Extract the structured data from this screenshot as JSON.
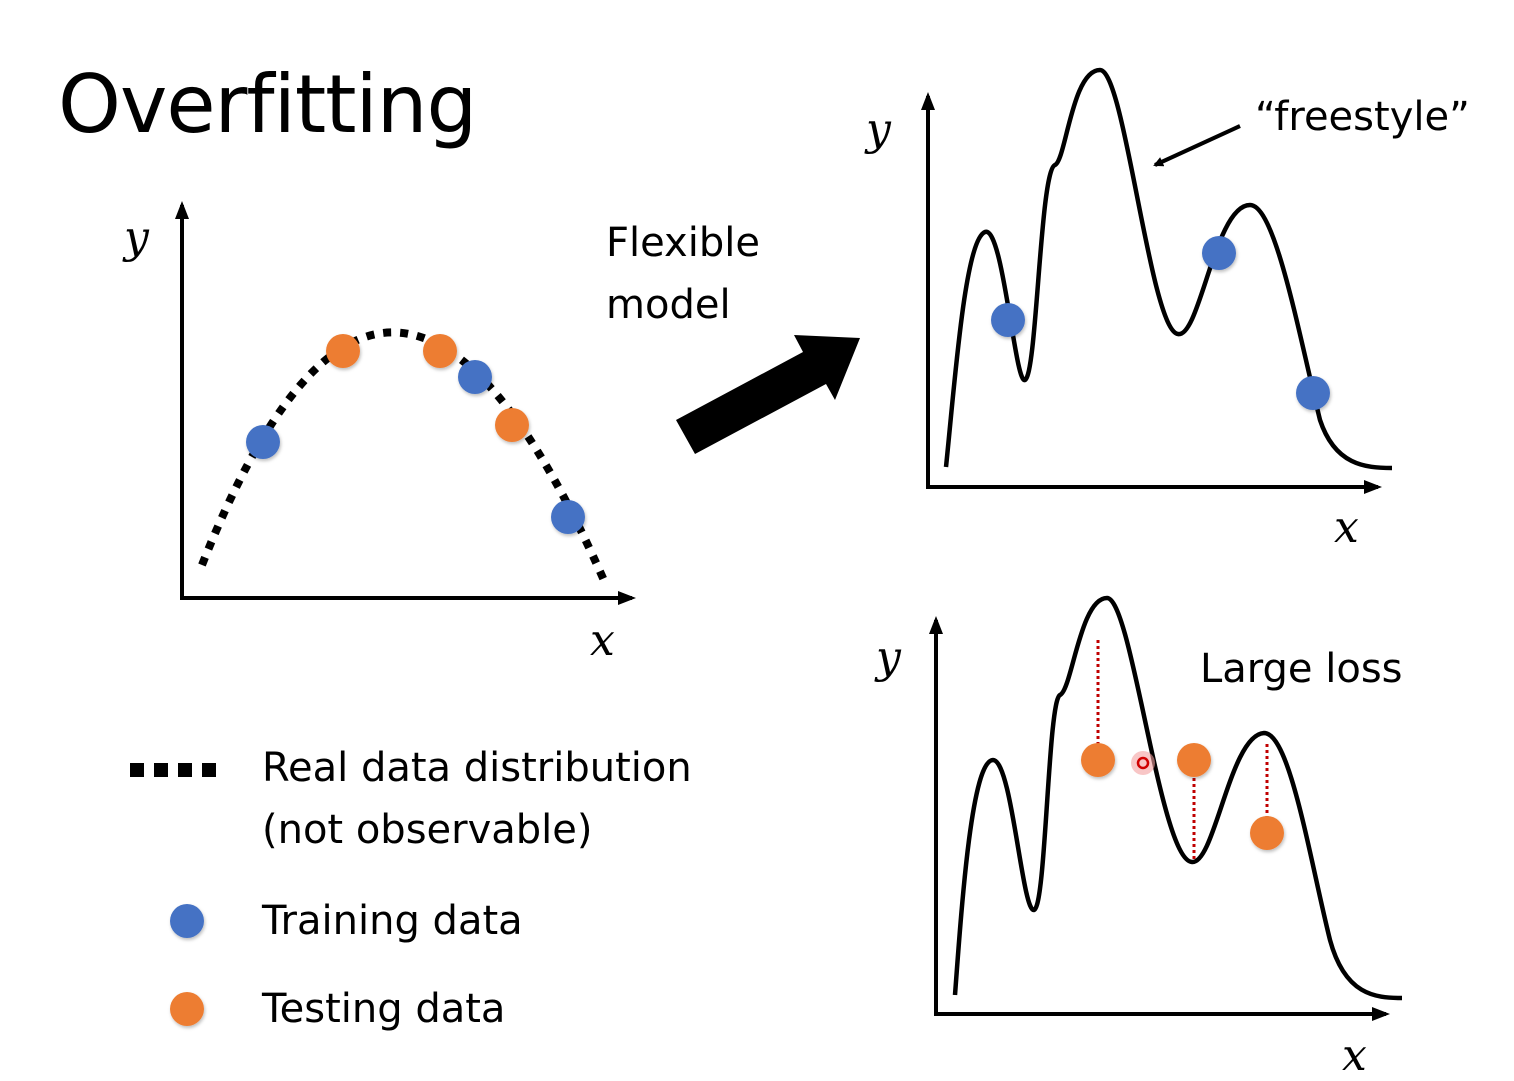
{
  "title": "Overfitting",
  "flexible_model": [
    "Flexible",
    "model"
  ],
  "freestyle": "“freestyle”",
  "large_loss": "Large loss",
  "axis": {
    "x": "x",
    "y": "y"
  },
  "legend": {
    "real": [
      "Real data distribution",
      "(not observable)"
    ],
    "training": "Training data",
    "testing": "Testing data"
  },
  "colors": {
    "training": "#4472C4",
    "testing": "#ED7D31",
    "curve": "#000000",
    "loss_line": "#C00000"
  }
}
